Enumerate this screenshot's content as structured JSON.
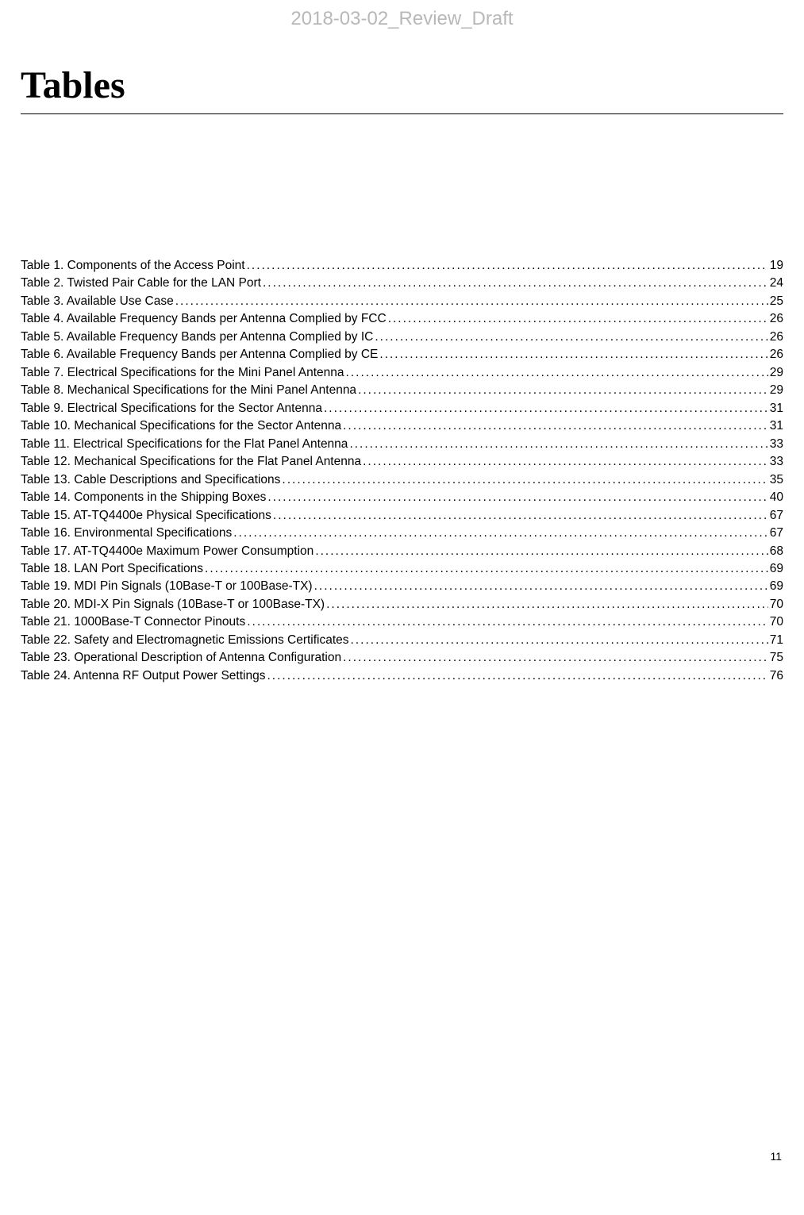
{
  "watermark": "2018-03-02_Review_Draft",
  "title": "Tables",
  "page_number": "11",
  "entries": [
    {
      "num": "1",
      "title": "Components of the Access Point",
      "page": "19"
    },
    {
      "num": "2",
      "title": "Twisted Pair Cable for the LAN Port",
      "page": "24"
    },
    {
      "num": "3",
      "title": "Available Use Case",
      "page": "25"
    },
    {
      "num": "4",
      "title": "Available Frequency Bands per Antenna Complied by FCC",
      "page": "26"
    },
    {
      "num": "5",
      "title": "Available Frequency Bands per Antenna Complied by IC",
      "page": "26"
    },
    {
      "num": "6",
      "title": "Available Frequency Bands per Antenna Complied by CE",
      "page": "26"
    },
    {
      "num": "7",
      "title": "Electrical Specifications for the Mini Panel Antenna",
      "page": "29"
    },
    {
      "num": "8",
      "title": "Mechanical Specifications for the Mini Panel Antenna",
      "page": "29"
    },
    {
      "num": "9",
      "title": "Electrical Specifications for the Sector Antenna",
      "page": "31"
    },
    {
      "num": "10",
      "title": "Mechanical Specifications for the Sector Antenna",
      "page": "31"
    },
    {
      "num": "11",
      "title": "Electrical Specifications for the Flat Panel Antenna",
      "page": "33"
    },
    {
      "num": "12",
      "title": "Mechanical Specifications for the Flat Panel Antenna",
      "page": "33"
    },
    {
      "num": "13",
      "title": "Cable Descriptions and Specifications",
      "page": "35"
    },
    {
      "num": "14",
      "title": "Components in the Shipping Boxes",
      "page": "40"
    },
    {
      "num": "15",
      "title": "AT-TQ4400e Physical Specifications",
      "page": "67"
    },
    {
      "num": "16",
      "title": "Environmental Specifications",
      "page": "67"
    },
    {
      "num": "17",
      "title": "AT-TQ4400e Maximum Power Consumption",
      "page": "68"
    },
    {
      "num": "18",
      "title": "LAN Port Specifications",
      "page": "69"
    },
    {
      "num": "19",
      "title": "MDI Pin Signals (10Base-T or 100Base-TX)",
      "page": "69"
    },
    {
      "num": "20",
      "title": "MDI-X Pin Signals (10Base-T or 100Base-TX)",
      "page": "70"
    },
    {
      "num": "21",
      "title": "1000Base-T Connector Pinouts",
      "page": "70"
    },
    {
      "num": "22",
      "title": "Safety and Electromagnetic Emissions Certificates",
      "page": "71"
    },
    {
      "num": "23",
      "title": "Operational Description of Antenna Configuration",
      "page": "75"
    },
    {
      "num": "24",
      "title": "Antenna RF Output Power Settings",
      "page": "76"
    }
  ]
}
